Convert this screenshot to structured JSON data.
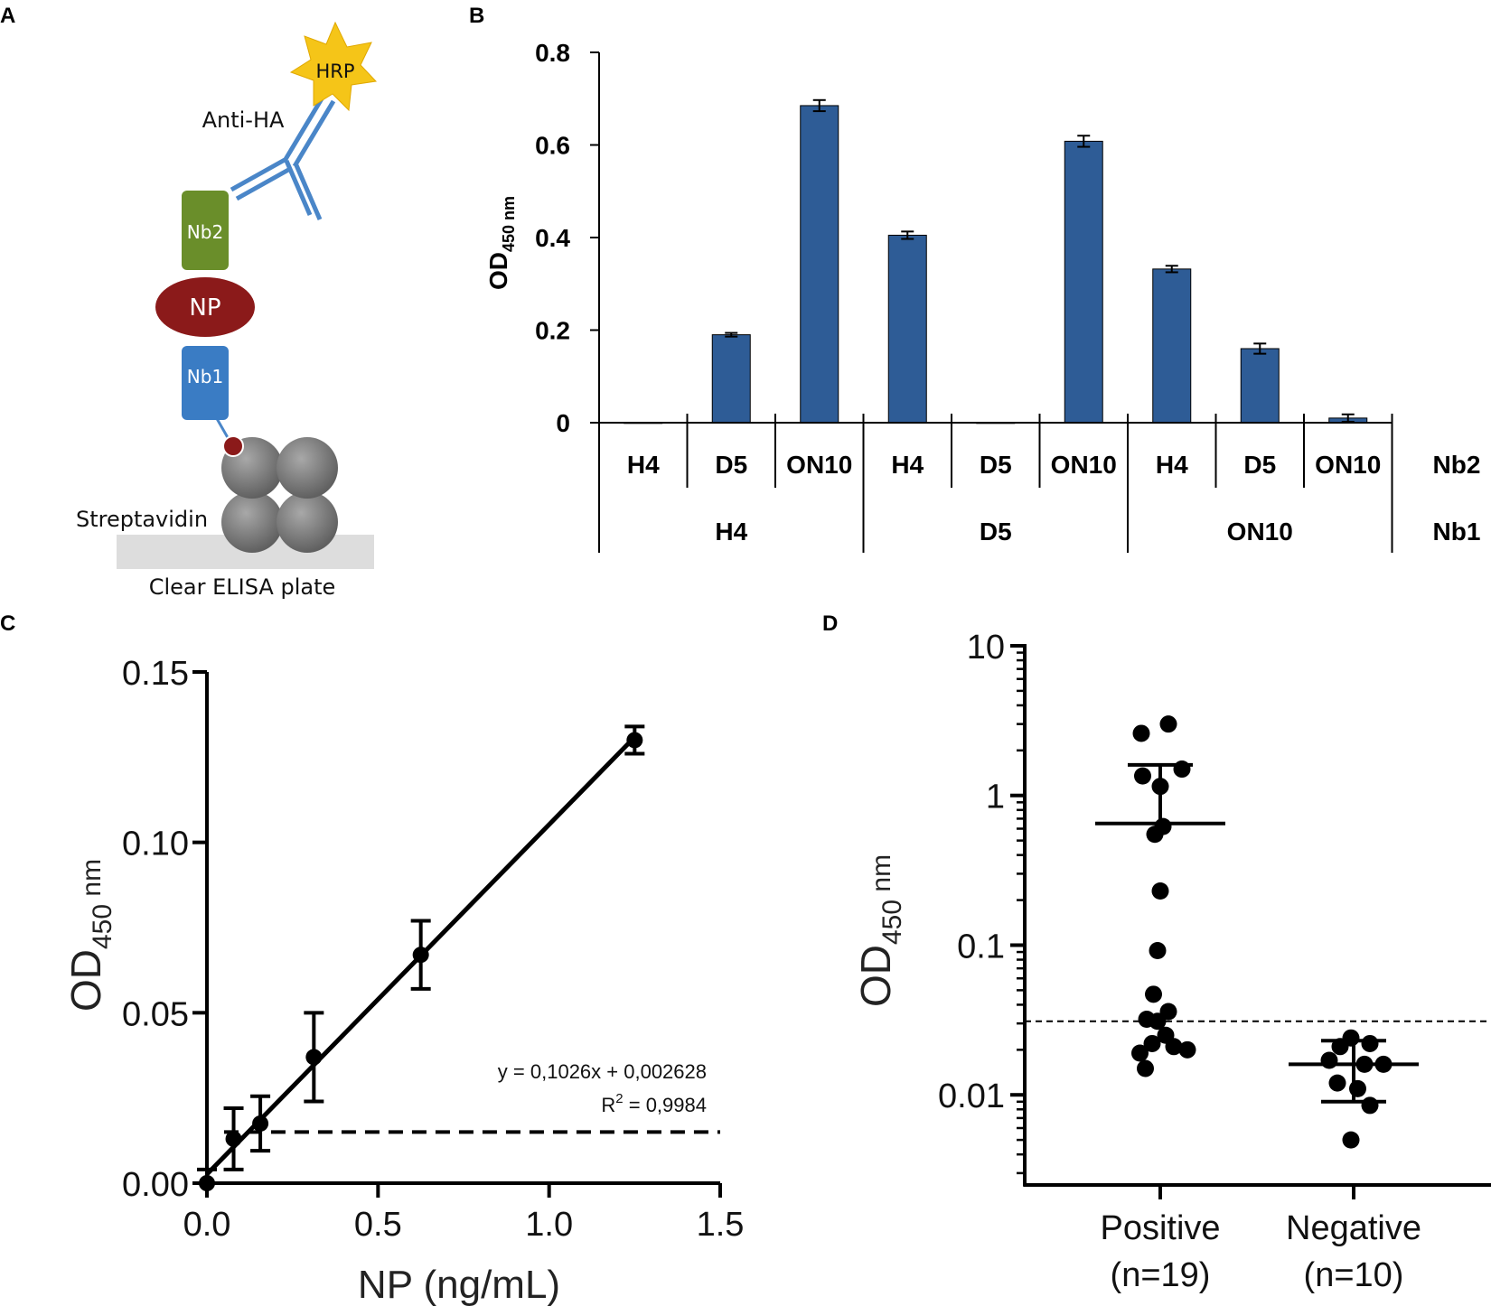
{
  "panel_labels": {
    "a": "A",
    "b": "B",
    "c": "C",
    "d": "D"
  },
  "diagram": {
    "hrp": "HRP",
    "anti_ha": "Anti-HA",
    "nb2": "Nb2",
    "np": "NP",
    "nb1": "Nb1",
    "streptavidin": "Streptavidin",
    "plate": "Clear ELISA plate",
    "colors": {
      "hrp": "#f5c518",
      "antibody": "#4a86c8",
      "nb2": "#6a8e2a",
      "np": "#8b1a1a",
      "nb1": "#3a7cc4",
      "streptavidin": "#777777",
      "plate": "#dddddd"
    }
  },
  "chart_data": [
    {
      "id": "B",
      "type": "bar",
      "ylabel": "OD",
      "ylabel_sub": "450 nm",
      "yticks": [
        "0",
        "0.2",
        "0.4",
        "0.6",
        "0.8"
      ],
      "ylim": [
        0,
        0.8
      ],
      "categories": [
        "H4",
        "D5",
        "ON10",
        "H4",
        "D5",
        "ON10",
        "H4",
        "D5",
        "ON10"
      ],
      "groups": [
        "H4",
        "D5",
        "ON10"
      ],
      "row_labels": {
        "nb2": "Nb2",
        "nb1": "Nb1"
      },
      "values": [
        0.0,
        0.19,
        0.685,
        0.405,
        0.0,
        0.608,
        0.332,
        0.16,
        0.01
      ],
      "errors": [
        0.0,
        0.004,
        0.012,
        0.008,
        0.0,
        0.012,
        0.007,
        0.011,
        0.008
      ],
      "bar_color": "#2e5c96"
    },
    {
      "id": "C",
      "type": "line",
      "xlabel": "NP (ng/mL)",
      "ylabel": "OD",
      "ylabel_sub": "450",
      "ylabel_unit": " nm",
      "xticks": [
        "0.0",
        "0.5",
        "1.0",
        "1.5"
      ],
      "yticks": [
        "0.00",
        "0.05",
        "0.10",
        "0.15"
      ],
      "xlim": [
        0,
        1.5
      ],
      "ylim": [
        0,
        0.15
      ],
      "x": [
        0,
        0.078,
        0.156,
        0.3125,
        0.625,
        1.25
      ],
      "y": [
        0.0,
        0.013,
        0.0175,
        0.037,
        0.067,
        0.13
      ],
      "errors": [
        0.004,
        0.009,
        0.008,
        0.013,
        0.01,
        0.004
      ],
      "fit": {
        "slope": 0.1026,
        "intercept": 0.002628
      },
      "equation": "y = 0,1026x + 0,002628",
      "r2_label": "R",
      "r2_sup": "2",
      "r2_value": " = 0,9984",
      "cutoff": 0.015
    },
    {
      "id": "D",
      "type": "scatter",
      "scale": "log",
      "ylabel": "OD",
      "ylabel_sub": "450",
      "ylabel_unit": " nm",
      "yticks": [
        "10",
        "1",
        "0.1",
        "0.01"
      ],
      "ytick_values": [
        10,
        1,
        0.1,
        0.01
      ],
      "ylim": [
        0.0025,
        10
      ],
      "categories": [
        {
          "name": "Positive",
          "n": "(n=19)"
        },
        {
          "name": "Negative",
          "n": "(n=10)"
        }
      ],
      "positive": {
        "points": [
          [
            -0.14,
            2.6
          ],
          [
            0.06,
            3.0
          ],
          [
            -0.13,
            1.35
          ],
          [
            0.16,
            1.5
          ],
          [
            0.0,
            1.15
          ],
          [
            -0.04,
            0.55
          ],
          [
            0.02,
            0.62
          ],
          [
            0.0,
            0.23
          ],
          [
            -0.02,
            0.092
          ],
          [
            -0.05,
            0.047
          ],
          [
            0.06,
            0.036
          ],
          [
            -0.1,
            0.032
          ],
          [
            -0.02,
            0.031
          ],
          [
            0.04,
            0.025
          ],
          [
            0.1,
            0.021
          ],
          [
            -0.06,
            0.022
          ],
          [
            -0.15,
            0.019
          ],
          [
            0.2,
            0.02
          ],
          [
            -0.11,
            0.015
          ]
        ],
        "mean": 0.65,
        "sd_upper": 1.6
      },
      "negative": {
        "points": [
          [
            -0.02,
            0.024
          ],
          [
            0.12,
            0.022
          ],
          [
            -0.1,
            0.021
          ],
          [
            -0.18,
            0.017
          ],
          [
            0.08,
            0.016
          ],
          [
            0.22,
            0.016
          ],
          [
            -0.12,
            0.012
          ],
          [
            0.03,
            0.011
          ],
          [
            0.12,
            0.0085
          ],
          [
            -0.02,
            0.005
          ]
        ],
        "mean": 0.016,
        "sd_upper": 0.023,
        "sd_lower": 0.009
      },
      "cutoff": 0.031
    }
  ]
}
